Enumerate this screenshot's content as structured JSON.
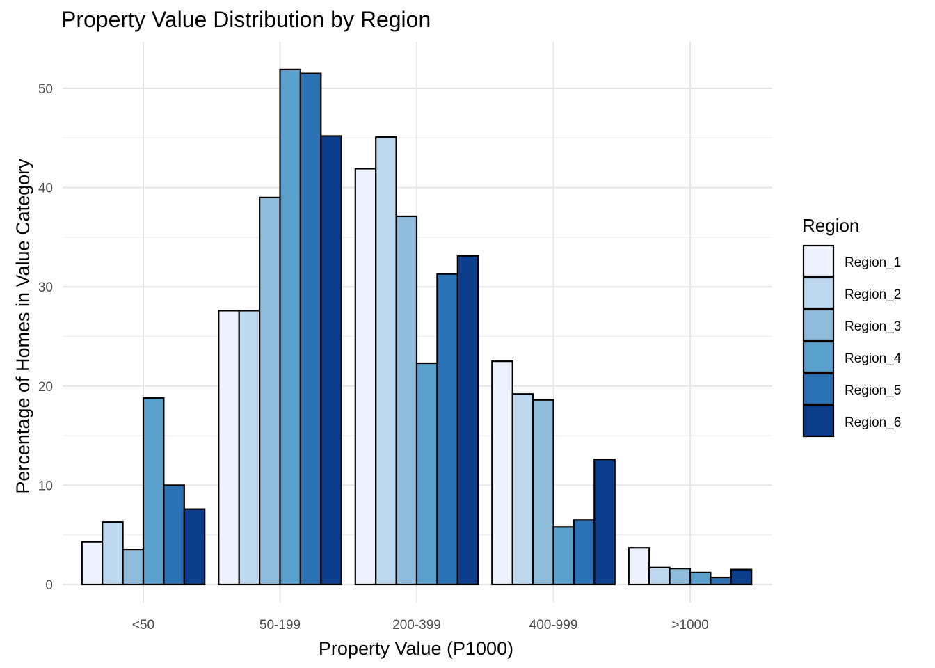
{
  "chart_data": {
    "type": "bar",
    "title": "Property Value Distribution by Region",
    "xlabel": "Property Value (P1000)",
    "ylabel": "Percentage of Homes in Value Category",
    "categories": [
      "<50",
      "50-199",
      "200-399",
      "400-999",
      ">1000"
    ],
    "ylim": [
      0,
      55
    ],
    "yticks": [
      0,
      10,
      20,
      30,
      40,
      50
    ],
    "grid": true,
    "legend": {
      "title": "Region",
      "position": "right"
    },
    "series": [
      {
        "name": "Region_1",
        "color": "#eff3ff",
        "values": [
          4.3,
          27.6,
          41.9,
          22.5,
          3.7
        ]
      },
      {
        "name": "Region_2",
        "color": "#bdd7ee",
        "values": [
          6.3,
          27.6,
          45.1,
          19.2,
          1.7
        ]
      },
      {
        "name": "Region_3",
        "color": "#8fbcdb",
        "values": [
          3.5,
          39.0,
          37.1,
          18.6,
          1.6
        ]
      },
      {
        "name": "Region_4",
        "color": "#5aa0cd",
        "values": [
          18.8,
          51.9,
          22.3,
          5.8,
          1.2
        ]
      },
      {
        "name": "Region_5",
        "color": "#2b72b4",
        "values": [
          10.0,
          51.5,
          31.3,
          6.5,
          0.7
        ]
      },
      {
        "name": "Region_6",
        "color": "#0c3d8a",
        "values": [
          7.6,
          45.2,
          33.1,
          12.6,
          1.5
        ]
      }
    ]
  }
}
